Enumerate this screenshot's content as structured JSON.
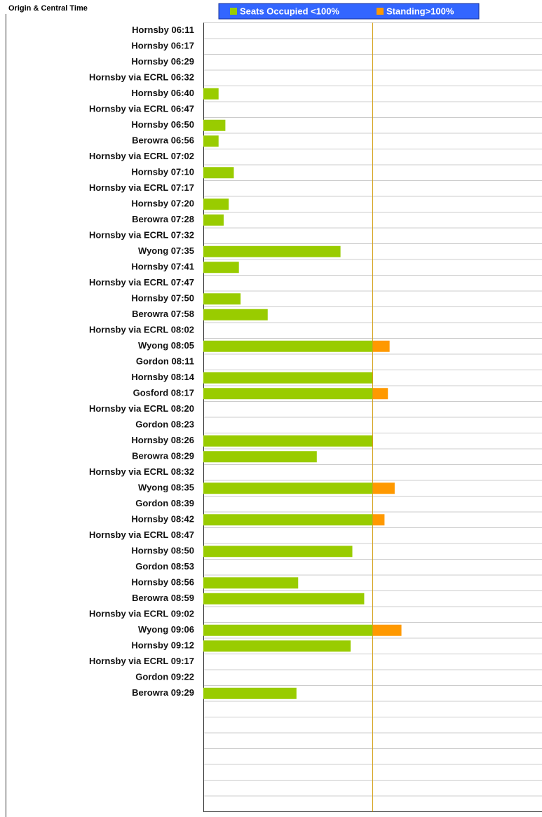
{
  "chart_data": {
    "type": "stacked-barh",
    "title": "Origin & Central Time",
    "categories": [
      "Hornsby 06:11",
      "Hornsby 06:17",
      "Hornsby 06:29",
      "Hornsby via ECRL 06:32",
      "Hornsby 06:40",
      "Hornsby via ECRL 06:47",
      "Hornsby 06:50",
      "Berowra 06:56",
      "Hornsby via ECRL 07:02",
      "Hornsby 07:10",
      "Hornsby via ECRL 07:17",
      "Hornsby 07:20",
      "Berowra 07:28",
      "Hornsby via ECRL 07:32",
      "Wyong 07:35",
      "Hornsby 07:41",
      "Hornsby via ECRL 07:47",
      "Hornsby 07:50",
      "Berowra 07:58",
      "Hornsby via ECRL 08:02",
      "Wyong 08:05",
      "Gordon 08:11",
      "Hornsby 08:14",
      "Gosford 08:17",
      "Hornsby via ECRL 08:20",
      "Gordon 08:23",
      "Hornsby 08:26",
      "Berowra 08:29",
      "Hornsby via ECRL 08:32",
      "Wyong 08:35",
      "Gordon 08:39",
      "Hornsby 08:42",
      "Hornsby via ECRL 08:47",
      "Hornsby 08:50",
      "Gordon 08:53",
      "Hornsby 08:56",
      "Berowra 08:59",
      "Hornsby via ECRL 09:02",
      "Wyong 09:06",
      "Hornsby 09:12",
      "Hornsby via ECRL 09:17",
      "Gordon 09:22",
      "Berowra 09:29",
      null,
      null,
      null,
      null,
      null,
      null,
      null
    ],
    "series": [
      {
        "name": "Seats Occupied <100%",
        "color": "#99cc00",
        "values": [
          0,
          0,
          0,
          0,
          9,
          0,
          13,
          9,
          0,
          18,
          0,
          15,
          12,
          0,
          81,
          21,
          0,
          22,
          38,
          0,
          100,
          0,
          100,
          100,
          0,
          0,
          100,
          67,
          0,
          100,
          0,
          100,
          0,
          88,
          0,
          56,
          95,
          0,
          100,
          87,
          0,
          0,
          55,
          null,
          null,
          null,
          null,
          null,
          null,
          null
        ]
      },
      {
        "name": "Standing>100%",
        "color": "#ff9900",
        "values": [
          0,
          0,
          0,
          0,
          0,
          0,
          0,
          0,
          0,
          0,
          0,
          0,
          0,
          0,
          0,
          0,
          0,
          0,
          0,
          0,
          10,
          0,
          0,
          9,
          0,
          0,
          0,
          0,
          0,
          13,
          0,
          7,
          0,
          0,
          0,
          0,
          0,
          0,
          17,
          0,
          0,
          0,
          0,
          null,
          null,
          null,
          null,
          null,
          null,
          null
        ]
      }
    ],
    "xlim": [
      0,
      200
    ],
    "threshold": 100,
    "threshold_color": "#d4a017",
    "legend_color": "#3366ff"
  }
}
